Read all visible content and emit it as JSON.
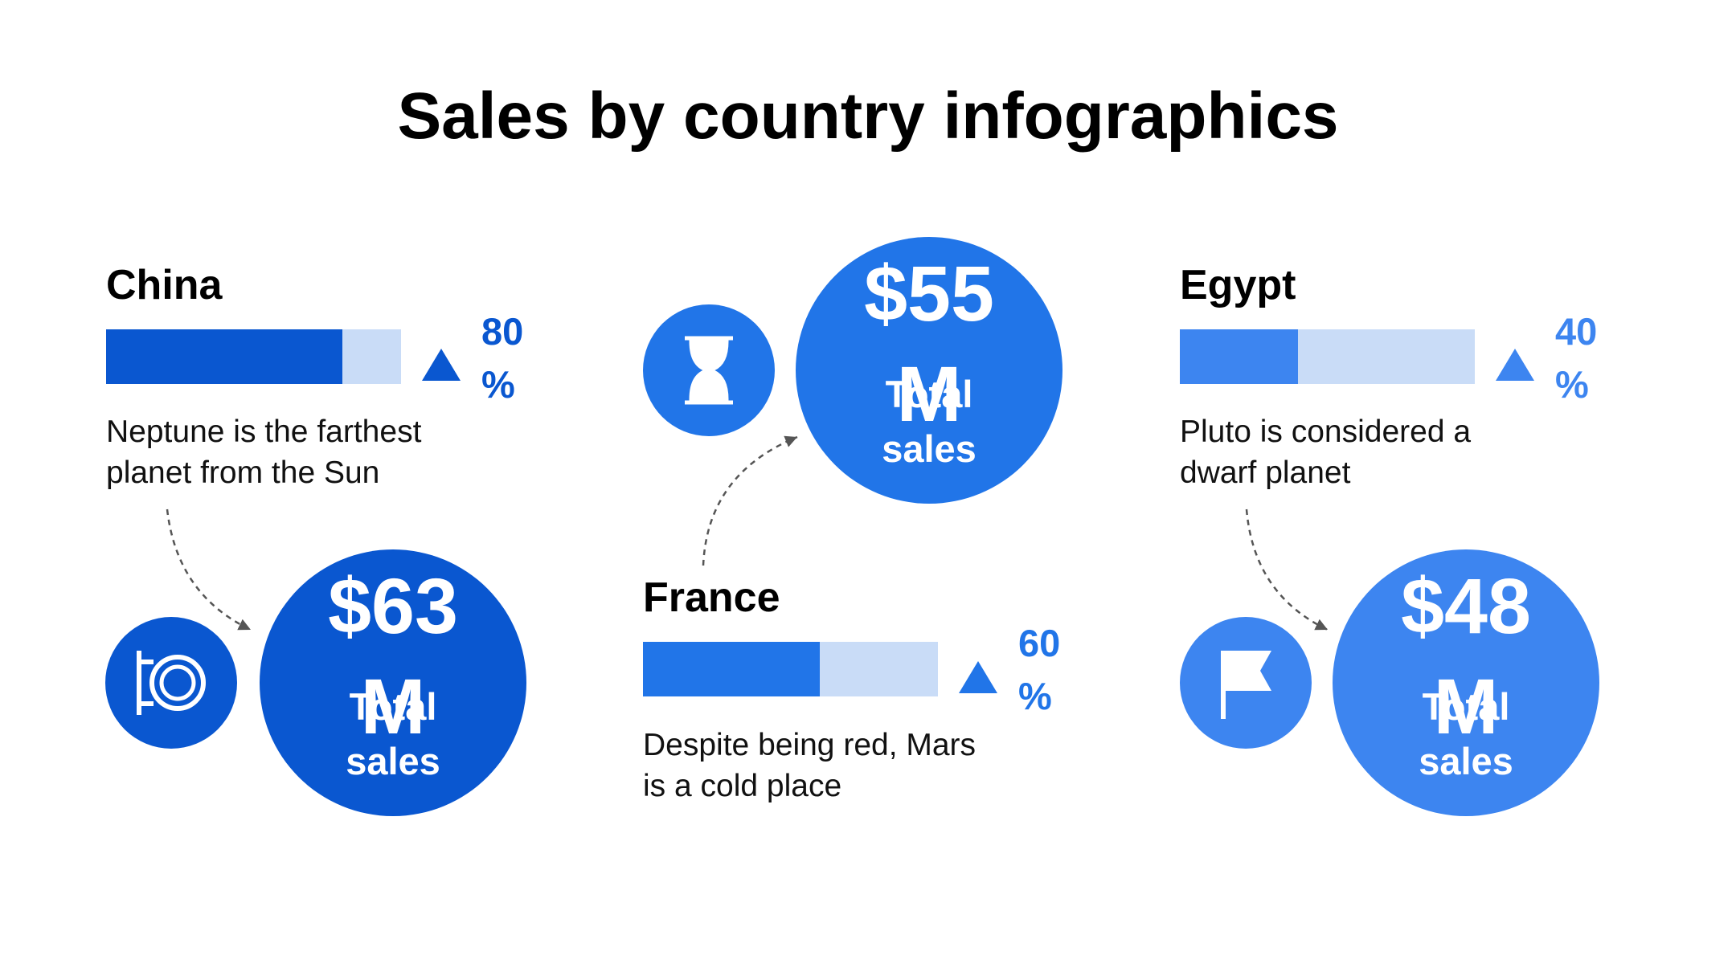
{
  "header": {
    "title": "Sales by country infographics"
  },
  "items": [
    {
      "country": "China",
      "percent": {
        "value": 80,
        "label": "80 %"
      },
      "description": "Neptune is the farthest planet from the Sun",
      "amount": "$63 M",
      "total_label": "Total sales",
      "color": "#0a57d0"
    },
    {
      "country": "France",
      "percent": {
        "value": 60,
        "label": "60 %"
      },
      "description": "Despite being red, Mars is a cold place",
      "amount": "$55 M",
      "total_label": "Total sales",
      "color": "#2175e8"
    },
    {
      "country": "Egypt",
      "percent": {
        "value": 40,
        "label": "40 %"
      },
      "description": "Pluto is considered a dwarf planet",
      "amount": "$48 M",
      "total_label": "Total sales",
      "color": "#3d85f0"
    }
  ]
}
